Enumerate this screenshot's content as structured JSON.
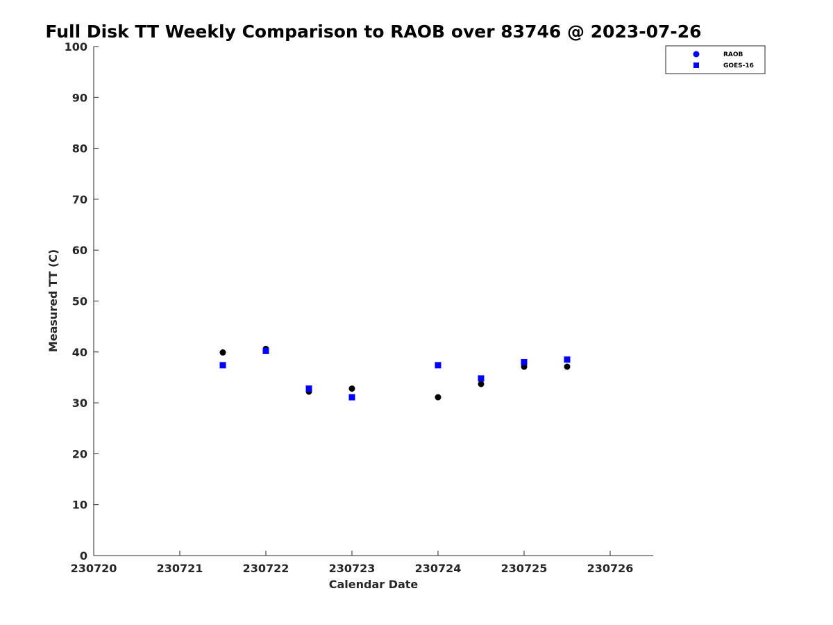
{
  "chart_data": {
    "type": "scatter",
    "title": "Full Disk TT Weekly Comparison to RAOB over 83746 @ 2023-07-26",
    "xlabel": "Calendar Date",
    "ylabel": "Measured TT (C)",
    "xlim": [
      230720,
      230726.5
    ],
    "ylim": [
      0,
      100
    ],
    "x_ticks": [
      230720,
      230721,
      230722,
      230723,
      230724,
      230725,
      230726
    ],
    "x_tick_labels": [
      "230720",
      "230721",
      "230722",
      "230723",
      "230724",
      "230725",
      "230726"
    ],
    "y_ticks": [
      0,
      10,
      20,
      30,
      40,
      50,
      60,
      70,
      80,
      90,
      100
    ],
    "y_tick_labels": [
      "0",
      "10",
      "20",
      "30",
      "40",
      "50",
      "60",
      "70",
      "80",
      "90",
      "100"
    ],
    "grid": false,
    "legend_position": "top-right",
    "legend": [
      {
        "label": "RAOB",
        "marker": "circle",
        "color": "#0000ff"
      },
      {
        "label": "GOES-16",
        "marker": "square",
        "color": "#0000ff"
      }
    ],
    "series": [
      {
        "name": "RAOB",
        "marker": "circle",
        "color": "#000000",
        "x": [
          230721.5,
          230722,
          230722.5,
          230723,
          230724,
          230724.5,
          230725,
          230725.5
        ],
        "y": [
          39.9,
          40.6,
          32.2,
          32.8,
          31.1,
          33.7,
          37.1,
          37.1
        ]
      },
      {
        "name": "GOES-16",
        "marker": "square",
        "color": "#0000ff",
        "x": [
          230721.5,
          230722,
          230722.5,
          230723,
          230724,
          230724.5,
          230725,
          230725.5
        ],
        "y": [
          37.4,
          40.2,
          32.8,
          31.1,
          37.4,
          34.8,
          38.0,
          38.5
        ]
      }
    ]
  }
}
